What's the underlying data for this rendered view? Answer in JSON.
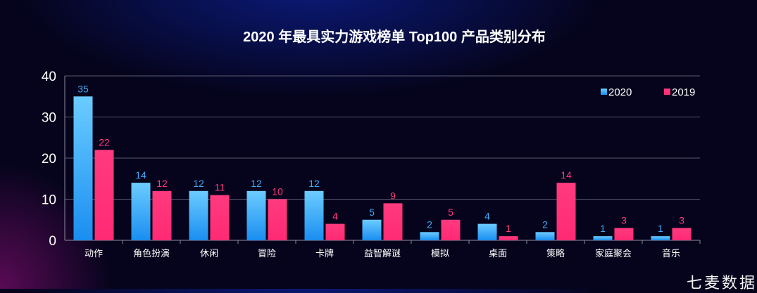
{
  "chart_data": {
    "type": "bar",
    "title": "2020 年最具实力游戏榜单 Top100 产品类别分布",
    "xlabel": "",
    "ylabel": "",
    "ylim": [
      0,
      40
    ],
    "yticks": [
      0,
      10,
      20,
      30,
      40
    ],
    "grid": true,
    "legend_position": "top-right",
    "categories": [
      "动作",
      "角色扮演",
      "休闲",
      "冒险",
      "卡牌",
      "益智解谜",
      "模拟",
      "桌面",
      "策略",
      "家庭聚会",
      "音乐"
    ],
    "series": [
      {
        "name": "2020",
        "color": "#3fa9f5",
        "values": [
          35,
          14,
          12,
          12,
          12,
          5,
          2,
          4,
          2,
          1,
          1
        ]
      },
      {
        "name": "2019",
        "color": "#ff2e7a",
        "values": [
          22,
          12,
          11,
          10,
          4,
          9,
          5,
          1,
          14,
          3,
          3
        ]
      }
    ]
  },
  "watermark": "七麦数据"
}
